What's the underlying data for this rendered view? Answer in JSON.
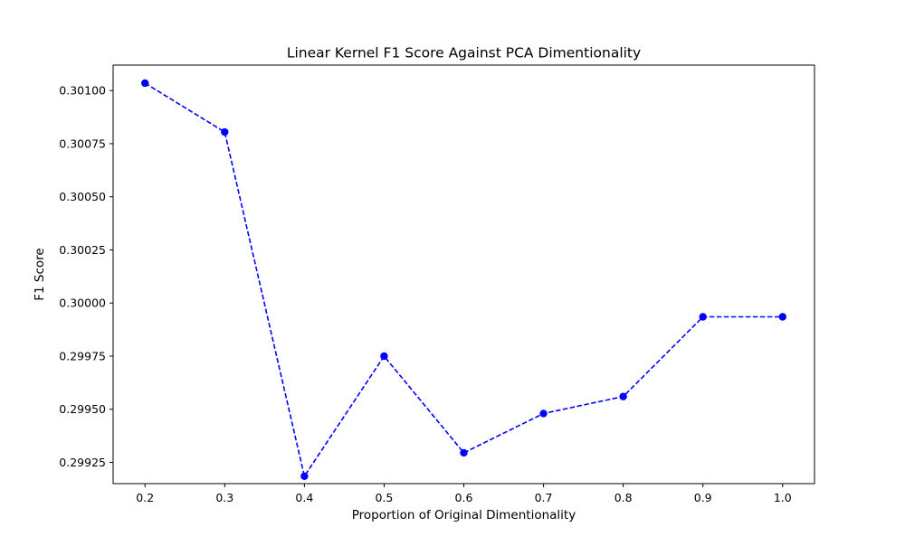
{
  "chart_data": {
    "type": "line",
    "title": "Linear Kernel F1 Score Against PCA Dimentionality",
    "xlabel": "Proportion of Original Dimentionality",
    "ylabel": "F1 Score",
    "x_ticks": [
      "0.2",
      "0.3",
      "0.4",
      "0.5",
      "0.6",
      "0.7",
      "0.8",
      "0.9",
      "1.0"
    ],
    "y_ticks": [
      "0.29925",
      "0.29950",
      "0.29975",
      "0.30000",
      "0.30025",
      "0.30050",
      "0.30075",
      "0.30100"
    ],
    "xlim": [
      0.16,
      1.04
    ],
    "ylim": [
      0.29915,
      0.30112
    ],
    "grid": false,
    "series": [
      {
        "color": "#0000ff",
        "line_style": "dashed",
        "marker": "circle",
        "x": [
          0.2,
          0.3,
          0.4,
          0.5,
          0.6,
          0.7,
          0.8,
          0.9,
          1.0
        ],
        "y": [
          0.301035,
          0.300805,
          0.299185,
          0.29975,
          0.299295,
          0.29948,
          0.29956,
          0.299935,
          0.299935
        ]
      }
    ]
  }
}
